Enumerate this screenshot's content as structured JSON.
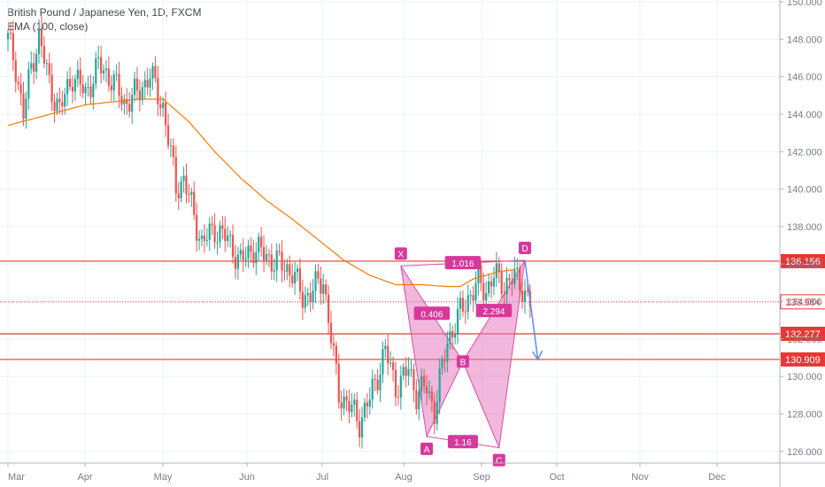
{
  "legend": {
    "symbol_line": "British Pound / Japanese Yen, 1D, FXCM",
    "indicator_line": "EMA (100, close)"
  },
  "colors": {
    "up": "#26a69a",
    "down": "#ef5350",
    "ema": "#f57c00",
    "hline": "#e53935",
    "pattern_fill": "#e57bbf",
    "pattern_stroke": "#d64fa6",
    "pattern_label_bg": "#d6399b",
    "projection_arrow": "#5b8def",
    "axis_text": "#7a7e89",
    "grid": "#eef0f3"
  },
  "chart_data": {
    "type": "candlestick",
    "title": "British Pound / Japanese Yen, 1D, FXCM",
    "x_labels": [
      "Mar",
      "Apr",
      "May",
      "Jun",
      "Jul",
      "Aug",
      "Sep",
      "Oct",
      "Nov",
      "Dec"
    ],
    "ylim": [
      125.5,
      150.2
    ],
    "y_ticks": [
      126.0,
      128.0,
      130.0,
      132.0,
      134.0,
      136.0,
      138.0,
      140.0,
      142.0,
      144.0,
      146.0,
      148.0,
      150.0
    ],
    "y_tick_labels": [
      "126.000",
      "128.000",
      "130.000",
      "132.000",
      "134.000",
      "136.000",
      "138.000",
      "140.000",
      "142.000",
      "144.000",
      "146.000",
      "148.000",
      "150.000"
    ],
    "price_path_days": [
      0,
      3,
      6,
      9,
      12,
      16,
      20,
      25,
      30,
      35,
      40,
      45,
      50,
      55,
      60,
      65,
      68,
      72,
      75,
      80,
      85,
      90,
      95,
      100,
      105,
      110,
      114,
      118,
      122,
      126,
      128,
      132,
      136,
      140,
      143,
      146,
      148,
      150,
      152,
      155,
      158,
      162,
      165,
      170,
      175,
      178,
      182,
      185,
      188,
      192,
      196,
      199,
      202
    ],
    "price_path_values": [
      148.0,
      146.5,
      144.0,
      146.5,
      148.2,
      145.6,
      144.2,
      146.1,
      145.1,
      146.6,
      145.9,
      144.6,
      145.1,
      146.1,
      144.4,
      140.1,
      140.5,
      138.6,
      137.1,
      137.9,
      137.3,
      136.1,
      136.9,
      136.4,
      136.0,
      135.6,
      134.2,
      134.6,
      135.2,
      131.0,
      129.1,
      128.4,
      127.6,
      128.8,
      130.1,
      131.4,
      130.4,
      129.5,
      129.7,
      130.4,
      129.1,
      129.4,
      128.2,
      131.9,
      133.4,
      134.2,
      135.0,
      134.6,
      135.4,
      134.9,
      135.3,
      134.8,
      133.9
    ],
    "ema_days": [
      0,
      30,
      50,
      60,
      70,
      80,
      90,
      100,
      110,
      120,
      130,
      140,
      150,
      160,
      170,
      175,
      180,
      185,
      190,
      196
    ],
    "ema_values": [
      143.4,
      144.5,
      144.8,
      144.8,
      143.6,
      142.0,
      140.6,
      139.4,
      138.4,
      137.3,
      136.2,
      135.4,
      134.9,
      134.9,
      134.8,
      134.8,
      135.2,
      135.4,
      135.6,
      135.7
    ],
    "horizontal_levels": [
      {
        "value": 136.156,
        "label": "136.156"
      },
      {
        "value": 132.277,
        "label": "132.277"
      },
      {
        "value": 130.909,
        "label": "130.909"
      }
    ],
    "current_price": {
      "value": 133.984,
      "label": "133.984"
    },
    "pattern": {
      "name": "bat",
      "points": [
        {
          "label": "X",
          "day": 152,
          "value": 135.9
        },
        {
          "label": "A",
          "day": 162,
          "value": 126.8
        },
        {
          "label": "B",
          "day": 176,
          "value": 130.8
        },
        {
          "label": "C",
          "day": 190,
          "value": 126.2
        },
        {
          "label": "D",
          "day": 200,
          "value": 136.2
        }
      ],
      "ratios": [
        "1.016",
        "0.406",
        "2.294",
        "1.16"
      ],
      "projection_target": {
        "day": 205,
        "value": 130.9
      }
    }
  }
}
